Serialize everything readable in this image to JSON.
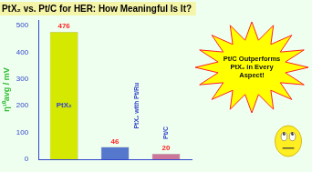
{
  "chart_data": {
    "type": "bar",
    "title": "PtX₂ vs. Pt/C for HER: How Meaningful Is It?",
    "categories": [
      "PtX₂",
      "PtX₂ with Pt/Ru",
      "Pt/C"
    ],
    "values": [
      476,
      46,
      20
    ],
    "colors": [
      "#d4e800",
      "#5577cc",
      "#cc7799"
    ],
    "data_labels": true,
    "ylabel": "η¹⁰avg / mV",
    "ylim": [
      0,
      520
    ],
    "yticks": [
      0,
      100,
      200,
      300,
      400,
      500
    ],
    "grid": false,
    "tick_labels": "y",
    "annotations": [
      "Pt/C Outperforms\nPtX₂ in Every\nAspect!"
    ]
  }
}
